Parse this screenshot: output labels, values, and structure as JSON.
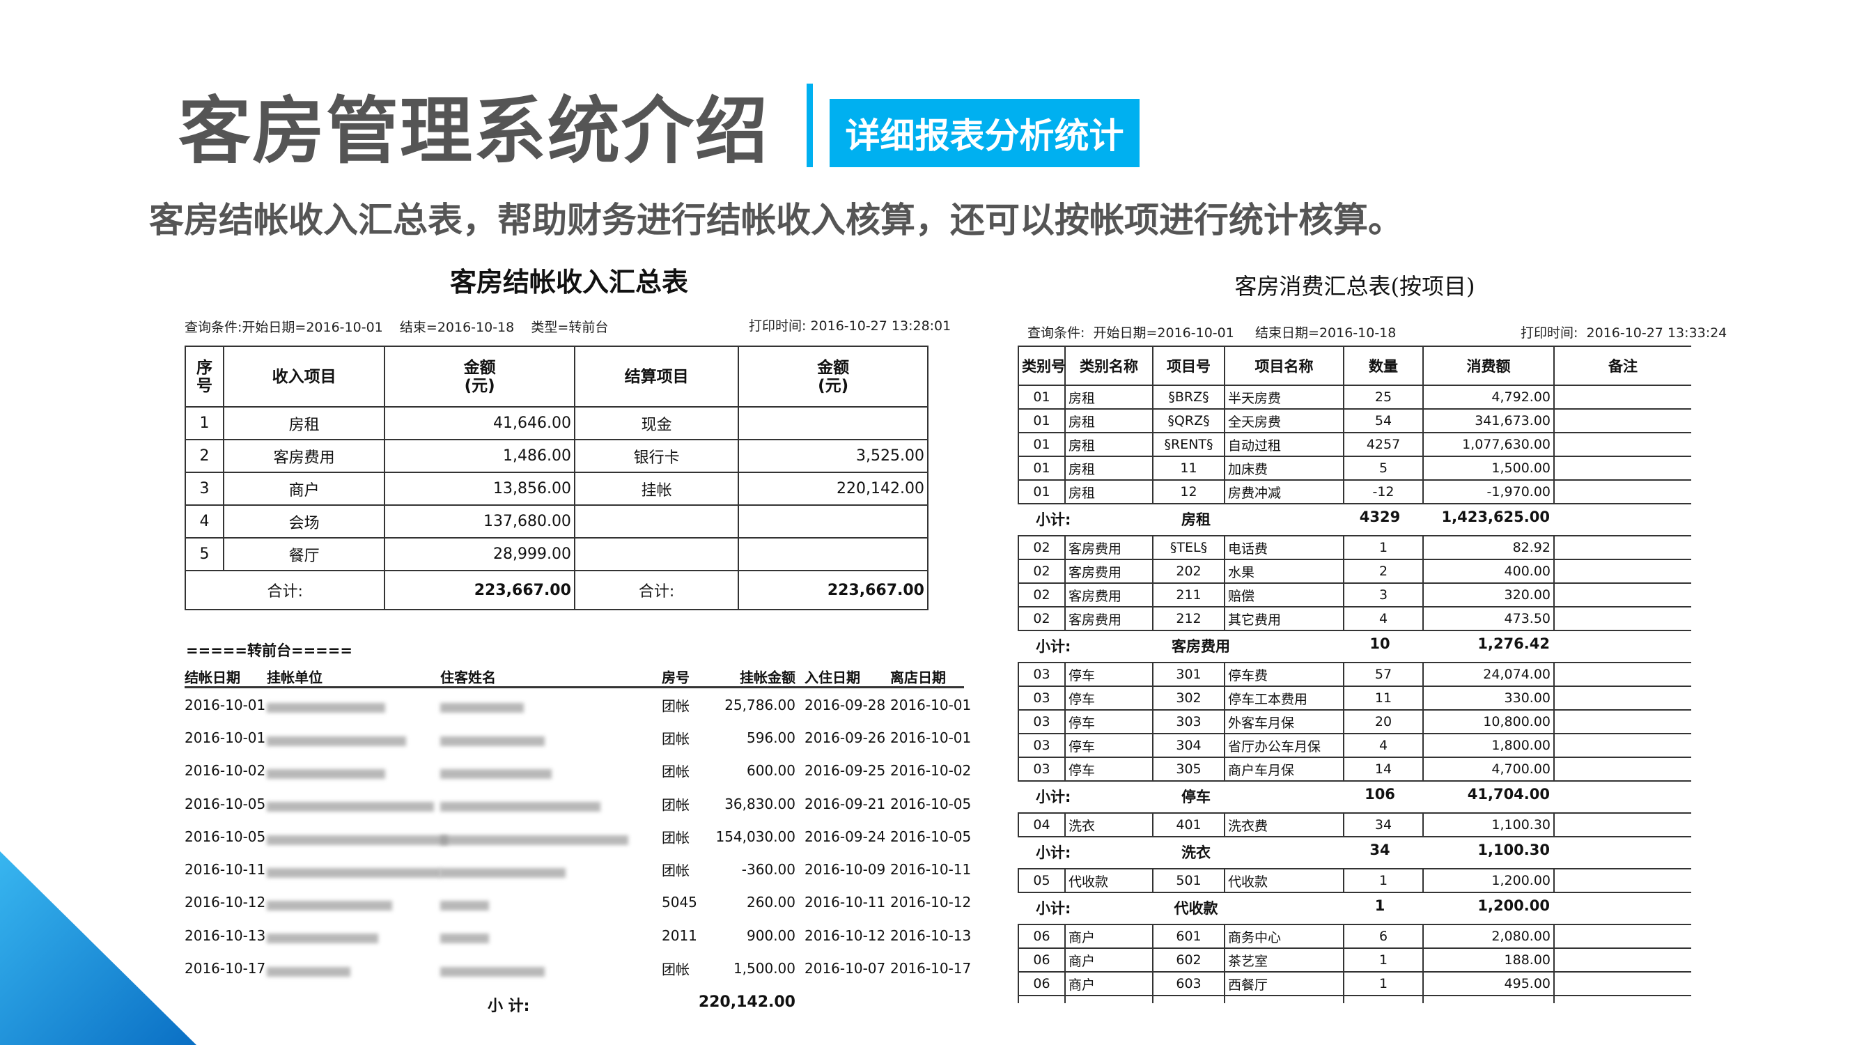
{
  "header": {
    "title": "客房管理系统介绍",
    "badge": "详细报表分析统计",
    "subtitle": "客房结帐收入汇总表，帮助财务进行结帐收入核算，还可以按帐项进行统计核算。"
  },
  "colors": {
    "accent": "#00b0f0",
    "title_gray": "#555555"
  },
  "left_report": {
    "title": "客房结帐收入汇总表",
    "query": "查询条件:开始日期=2016-10-01    结束=2016-10-18    类型=转前台",
    "print_time": "打印时间: 2016-10-27 13:28:01",
    "headers": [
      "序号",
      "收入项目",
      "金额\n(元)",
      "结算项目",
      "金额\n(元)"
    ],
    "rows": [
      {
        "no": "1",
        "item": "房租",
        "amount": "41,646.00",
        "settle": "现金",
        "settle_amount": ""
      },
      {
        "no": "2",
        "item": "客房费用",
        "amount": "1,486.00",
        "settle": "银行卡",
        "settle_amount": "3,525.00"
      },
      {
        "no": "3",
        "item": "商户",
        "amount": "13,856.00",
        "settle": "挂帐",
        "settle_amount": "220,142.00"
      },
      {
        "no": "4",
        "item": "会场",
        "amount": "137,680.00",
        "settle": "",
        "settle_amount": ""
      },
      {
        "no": "5",
        "item": "餐厅",
        "amount": "28,999.00",
        "settle": "",
        "settle_amount": ""
      }
    ],
    "total_label": "合计:",
    "total": "223,667.00",
    "settle_total_label": "合计:",
    "settle_total": "223,667.00",
    "section_label": "=====转前台=====",
    "list_headers": [
      "结帐日期",
      "挂帐单位",
      "住客姓名",
      "房号",
      "挂帐金额",
      "入住日期",
      "离店日期"
    ],
    "list_rows": [
      {
        "date": "2016-10-01",
        "room": "团帐",
        "amount": "25,786.00",
        "in": "2016-09-28",
        "out": "2016-10-01"
      },
      {
        "date": "2016-10-01",
        "room": "团帐",
        "amount": "596.00",
        "in": "2016-09-26",
        "out": "2016-10-01"
      },
      {
        "date": "2016-10-02",
        "room": "团帐",
        "amount": "600.00",
        "in": "2016-09-25",
        "out": "2016-10-02"
      },
      {
        "date": "2016-10-05",
        "room": "团帐",
        "amount": "36,830.00",
        "in": "2016-09-21",
        "out": "2016-10-05"
      },
      {
        "date": "2016-10-05",
        "room": "团帐",
        "amount": "154,030.00",
        "in": "2016-09-24",
        "out": "2016-10-05"
      },
      {
        "date": "2016-10-11",
        "room": "团帐",
        "amount": "-360.00",
        "in": "2016-10-09",
        "out": "2016-10-11"
      },
      {
        "date": "2016-10-12",
        "room": "5045",
        "amount": "260.00",
        "in": "2016-10-11",
        "out": "2016-10-12"
      },
      {
        "date": "2016-10-13",
        "room": "2011",
        "amount": "900.00",
        "in": "2016-10-12",
        "out": "2016-10-13"
      },
      {
        "date": "2016-10-17",
        "room": "团帐",
        "amount": "1,500.00",
        "in": "2016-10-07",
        "out": "2016-10-17"
      }
    ],
    "subtotal_label": "小 计:",
    "subtotal": "220,142.00"
  },
  "right_report": {
    "title": "客房消费汇总表(按项目)",
    "query": "查询条件:  开始日期=2016-10-01     结束日期=2016-10-18",
    "print_time": "打印时间:  2016-10-27 13:33:24",
    "headers": [
      "类别号",
      "类别名称",
      "项目号",
      "项目名称",
      "数量",
      "消费额",
      "备注"
    ],
    "subtotal_label": "小计:",
    "groups": [
      {
        "rows": [
          [
            "01",
            "房租",
            "§BRZ§",
            "半天房费",
            "25",
            "4,792.00"
          ],
          [
            "01",
            "房租",
            "§QRZ§",
            "全天房费",
            "54",
            "341,673.00"
          ],
          [
            "01",
            "房租",
            "§RENT§",
            "自动过租",
            "4257",
            "1,077,630.00"
          ],
          [
            "01",
            "房租",
            "11",
            "加床费",
            "5",
            "1,500.00"
          ],
          [
            "01",
            "房租",
            "12",
            "房费冲减",
            "-12",
            "-1,970.00"
          ]
        ],
        "name": "房租",
        "qty": "4329",
        "total": "1,423,625.00"
      },
      {
        "rows": [
          [
            "02",
            "客房费用",
            "§TEL§",
            "电话费",
            "1",
            "82.92"
          ],
          [
            "02",
            "客房费用",
            "202",
            "水果",
            "2",
            "400.00"
          ],
          [
            "02",
            "客房费用",
            "211",
            "赔偿",
            "3",
            "320.00"
          ],
          [
            "02",
            "客房费用",
            "212",
            "其它费用",
            "4",
            "473.50"
          ]
        ],
        "name": "客房费用",
        "qty": "10",
        "total": "1,276.42"
      },
      {
        "rows": [
          [
            "03",
            "停车",
            "301",
            "停车费",
            "57",
            "24,074.00"
          ],
          [
            "03",
            "停车",
            "302",
            "停车工本费用",
            "11",
            "330.00"
          ],
          [
            "03",
            "停车",
            "303",
            "外客车月保",
            "20",
            "10,800.00"
          ],
          [
            "03",
            "停车",
            "304",
            "省厅办公车月保",
            "4",
            "1,800.00"
          ],
          [
            "03",
            "停车",
            "305",
            "商户车月保",
            "14",
            "4,700.00"
          ]
        ],
        "name": "停车",
        "qty": "106",
        "total": "41,704.00"
      },
      {
        "rows": [
          [
            "04",
            "洗衣",
            "401",
            "洗衣费",
            "34",
            "1,100.30"
          ]
        ],
        "name": "洗衣",
        "qty": "34",
        "total": "1,100.30"
      },
      {
        "rows": [
          [
            "05",
            "代收款",
            "501",
            "代收款",
            "1",
            "1,200.00"
          ]
        ],
        "name": "代收款",
        "qty": "1",
        "total": "1,200.00"
      },
      {
        "rows": [
          [
            "06",
            "商户",
            "601",
            "商务中心",
            "6",
            "2,080.00"
          ],
          [
            "06",
            "商户",
            "602",
            "茶艺室",
            "1",
            "188.00"
          ],
          [
            "06",
            "商户",
            "603",
            "西餐厅",
            "1",
            "495.00"
          ],
          [
            "",
            "",
            "",
            "",
            "",
            ""
          ]
        ]
      }
    ]
  }
}
